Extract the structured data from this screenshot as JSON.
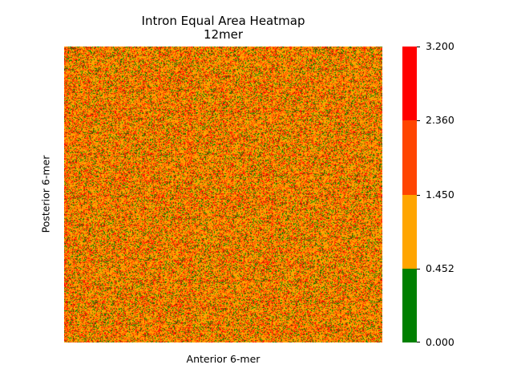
{
  "chart_data": {
    "type": "heatmap",
    "title": "Intron Equal Area Heatmap",
    "subtitle": "12mer",
    "xlabel": "Anterior 6-mer",
    "ylabel": "Posterior 6-mer",
    "colorbar": {
      "bins": [
        {
          "min": 0.0,
          "max": 0.452,
          "color": "#008000"
        },
        {
          "min": 0.452,
          "max": 1.45,
          "color": "#ffa500"
        },
        {
          "min": 1.45,
          "max": 2.36,
          "color": "#ff4500"
        },
        {
          "min": 2.36,
          "max": 3.2,
          "color": "#ff0000"
        }
      ],
      "ticks": [
        "0.000",
        "0.452",
        "1.450",
        "2.360",
        "3.200"
      ]
    }
  }
}
